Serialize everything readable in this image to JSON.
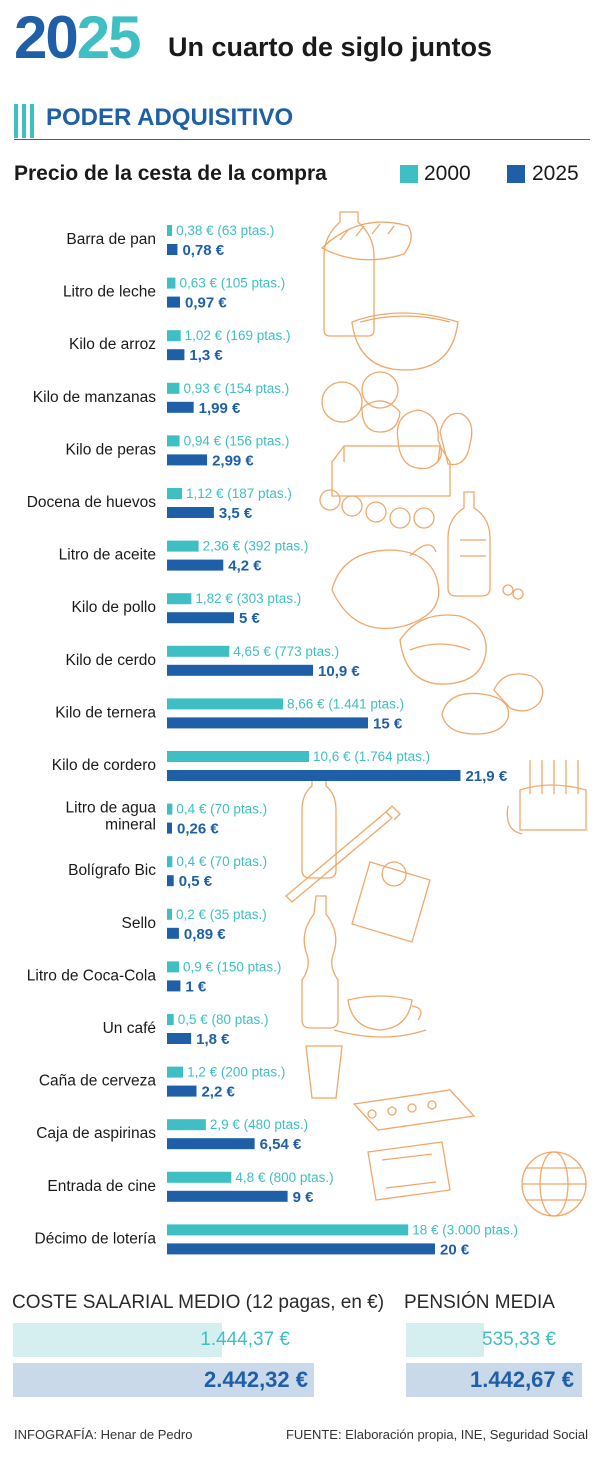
{
  "header": {
    "year_first": "20",
    "year_second": "25",
    "subtitle": "Un cuarto de siglo juntos"
  },
  "section": {
    "title": "PODER ADQUISITIVO"
  },
  "colors": {
    "c2000": "#3dbfc4",
    "c2025": "#1e5fa8",
    "deco": "#f0a86a"
  },
  "chart_data": {
    "type": "bar",
    "orientation": "horizontal",
    "title": "Precio de la cesta de la compra",
    "legend": [
      "2000",
      "2025"
    ],
    "xlim": [
      0,
      22
    ],
    "categories": [
      [
        "Barra de pan"
      ],
      [
        "Litro de leche"
      ],
      [
        "Kilo de arroz"
      ],
      [
        "Kilo de manzanas"
      ],
      [
        "Kilo de peras"
      ],
      [
        "Docena de huevos"
      ],
      [
        "Litro de aceite"
      ],
      [
        "Kilo de pollo"
      ],
      [
        "Kilo de cerdo"
      ],
      [
        "Kilo de ternera"
      ],
      [
        "Kilo de cordero"
      ],
      [
        "Litro de agua",
        "mineral"
      ],
      [
        "Bolígrafo Bic"
      ],
      [
        "Sello"
      ],
      [
        "Litro de Coca-Cola"
      ],
      [
        "Un café"
      ],
      [
        "Caña de cerveza"
      ],
      [
        "Caja de aspirinas"
      ],
      [
        "Entrada de cine"
      ],
      [
        "Décimo de lotería"
      ]
    ],
    "series": [
      {
        "name": "2000",
        "values": [
          0.38,
          0.63,
          1.02,
          0.93,
          0.94,
          1.12,
          2.36,
          1.82,
          4.65,
          8.66,
          10.6,
          0.4,
          0.4,
          0.2,
          0.9,
          0.5,
          1.2,
          2.9,
          4.8,
          18
        ],
        "labels": [
          "0,38 € (63 ptas.)",
          "0,63 € (105 ptas.)",
          "1,02 € (169 ptas.)",
          "0,93 € (154 ptas.)",
          "0,94 € (156 ptas.)",
          "1,12 € (187 ptas.)",
          "2,36 € (392 ptas.)",
          "1,82 € (303 ptas.)",
          "4,65 € (773 ptas.)",
          "8,66 € (1.441 ptas.)",
          "10,6 € (1.764 ptas.)",
          "0,4 € (70 ptas.)",
          "0,4 € (70 ptas.)",
          "0,2 € (35 ptas.)",
          "0,9 € (150 ptas.)",
          "0,5 € (80 ptas.)",
          "1,2 € (200 ptas.)",
          "2,9 € (480 ptas.)",
          "4,8 € (800 ptas.)",
          "18 € (3.000 ptas.)"
        ]
      },
      {
        "name": "2025",
        "values": [
          0.78,
          0.97,
          1.3,
          1.99,
          2.99,
          3.5,
          4.2,
          5,
          10.9,
          15,
          21.9,
          0.26,
          0.5,
          0.89,
          1,
          1.8,
          2.2,
          6.54,
          9,
          20
        ],
        "labels": [
          "0,78 €",
          "0,97 €",
          "1,3 €",
          "1,99 €",
          "2,99 €",
          "3,5 €",
          "4,2 €",
          "5 €",
          "10,9 €",
          "15 €",
          "21,9 €",
          "0,26 €",
          "0,5 €",
          "0,89 €",
          "1 €",
          "1,8 €",
          "2,2 €",
          "6,54 €",
          "9 €",
          "20 €"
        ]
      }
    ]
  },
  "salary": {
    "title": "COSTE SALARIAL MEDIO (12 pagas, en €)",
    "value_2000": 1444.37,
    "value_2025": 2442.32,
    "label_2000": "1.444,37 €",
    "label_2025": "2.442,32 €"
  },
  "pension": {
    "title": "PENSIÓN MEDIA",
    "value_2000": 535.33,
    "value_2025": 1442.67,
    "label_2000": "535,33 €",
    "label_2025": "1.442,67 €"
  },
  "footer": {
    "credit": "INFOGRAFÍA: Henar de Pedro",
    "source": "FUENTE: Elaboración propia, INE, Seguridad Social"
  }
}
